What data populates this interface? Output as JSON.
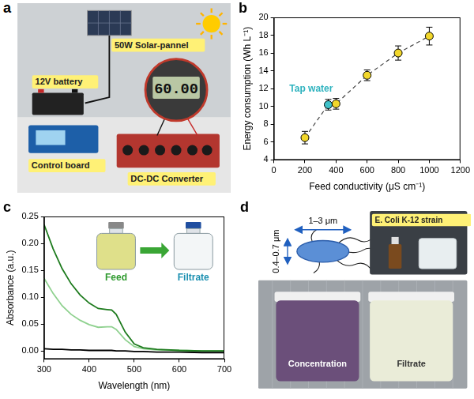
{
  "chart_data": [
    {
      "panel": "b",
      "type": "scatter",
      "xlabel": "Feed conductivity (μS cm⁻¹)",
      "ylabel": "Energy consumption (Wh L⁻¹)",
      "x": [
        200,
        350,
        400,
        600,
        800,
        1000
      ],
      "values": [
        6.5,
        10.2,
        10.3,
        13.5,
        16.0,
        17.9
      ],
      "errors": [
        0.7,
        0.6,
        0.6,
        0.6,
        0.8,
        1.0
      ],
      "colors": [
        "#f2d72b",
        "#3fc1c9",
        "#f2d72b",
        "#f2d72b",
        "#f2d72b",
        "#f2d72b"
      ],
      "marker": "circle",
      "line_style": "dashed",
      "xlim": [
        0,
        1200
      ],
      "xticks": [
        0,
        200,
        400,
        600,
        800,
        1000,
        1200
      ],
      "ylim": [
        4,
        20
      ],
      "yticks": [
        4,
        6,
        8,
        10,
        12,
        14,
        16,
        18,
        20
      ],
      "grid": false,
      "annotations": [
        {
          "text": "Tap water",
          "x": 240,
          "y": 12.0,
          "color": "#2fb3bf"
        }
      ]
    },
    {
      "panel": "c",
      "type": "line",
      "xlabel": "Wavelength (nm)",
      "ylabel": "Absorbance (a.u.)",
      "x": [
        300,
        320,
        340,
        360,
        380,
        400,
        420,
        440,
        450,
        460,
        480,
        500,
        520,
        550,
        600,
        650,
        700
      ],
      "series": [
        {
          "color": "#1e7b1e",
          "values": [
            0.235,
            0.19,
            0.153,
            0.125,
            0.104,
            0.089,
            0.079,
            0.077,
            0.076,
            0.068,
            0.035,
            0.013,
            0.006,
            0.003,
            0.001,
            0.0,
            0.0
          ]
        },
        {
          "color": "#8fd18f",
          "values": [
            0.135,
            0.107,
            0.084,
            0.068,
            0.057,
            0.049,
            0.044,
            0.045,
            0.045,
            0.04,
            0.021,
            0.008,
            0.004,
            0.002,
            0.001,
            0.0,
            0.0
          ]
        },
        {
          "color": "#000000",
          "values": [
            0.004,
            0.003,
            0.003,
            0.002,
            0.002,
            0.001,
            0.001,
            0.001,
            0.001,
            0.0,
            0.0,
            -0.001,
            -0.001,
            -0.002,
            -0.002,
            -0.003,
            -0.003
          ]
        }
      ],
      "xlim": [
        300,
        700
      ],
      "xticks": [
        300,
        400,
        500,
        600,
        700
      ],
      "ylim": [
        -0.015,
        0.25
      ],
      "yticks": [
        {
          "value": 0,
          "label": "0.00"
        },
        {
          "value": 0.05,
          "label": "0.05"
        },
        {
          "value": 0.1,
          "label": "0.10"
        },
        {
          "value": 0.15,
          "label": "0.15"
        },
        {
          "value": 0.2,
          "label": "0.20"
        },
        {
          "value": 0.25,
          "label": "0.25"
        }
      ],
      "grid": false,
      "inset_labels": [
        {
          "text": "Feed",
          "color": "#2e9a2e"
        },
        {
          "text": "Filtrate",
          "color": "#1a8fb0"
        }
      ]
    }
  ],
  "photos": [
    {
      "panel": "a",
      "labels": {
        "solar": "50W Solar-pannel",
        "battery": "12V battery",
        "board": "Control board",
        "converter": "DC-DC Converter",
        "meter": "60.00"
      }
    },
    {
      "panel": "d",
      "labels": {
        "length": "1–3 μm",
        "width": "0.4–0.7 μm",
        "strain": "E. Coli K-12 strain",
        "concentration": "Concentration",
        "filtrate": "Filtrate"
      }
    }
  ]
}
